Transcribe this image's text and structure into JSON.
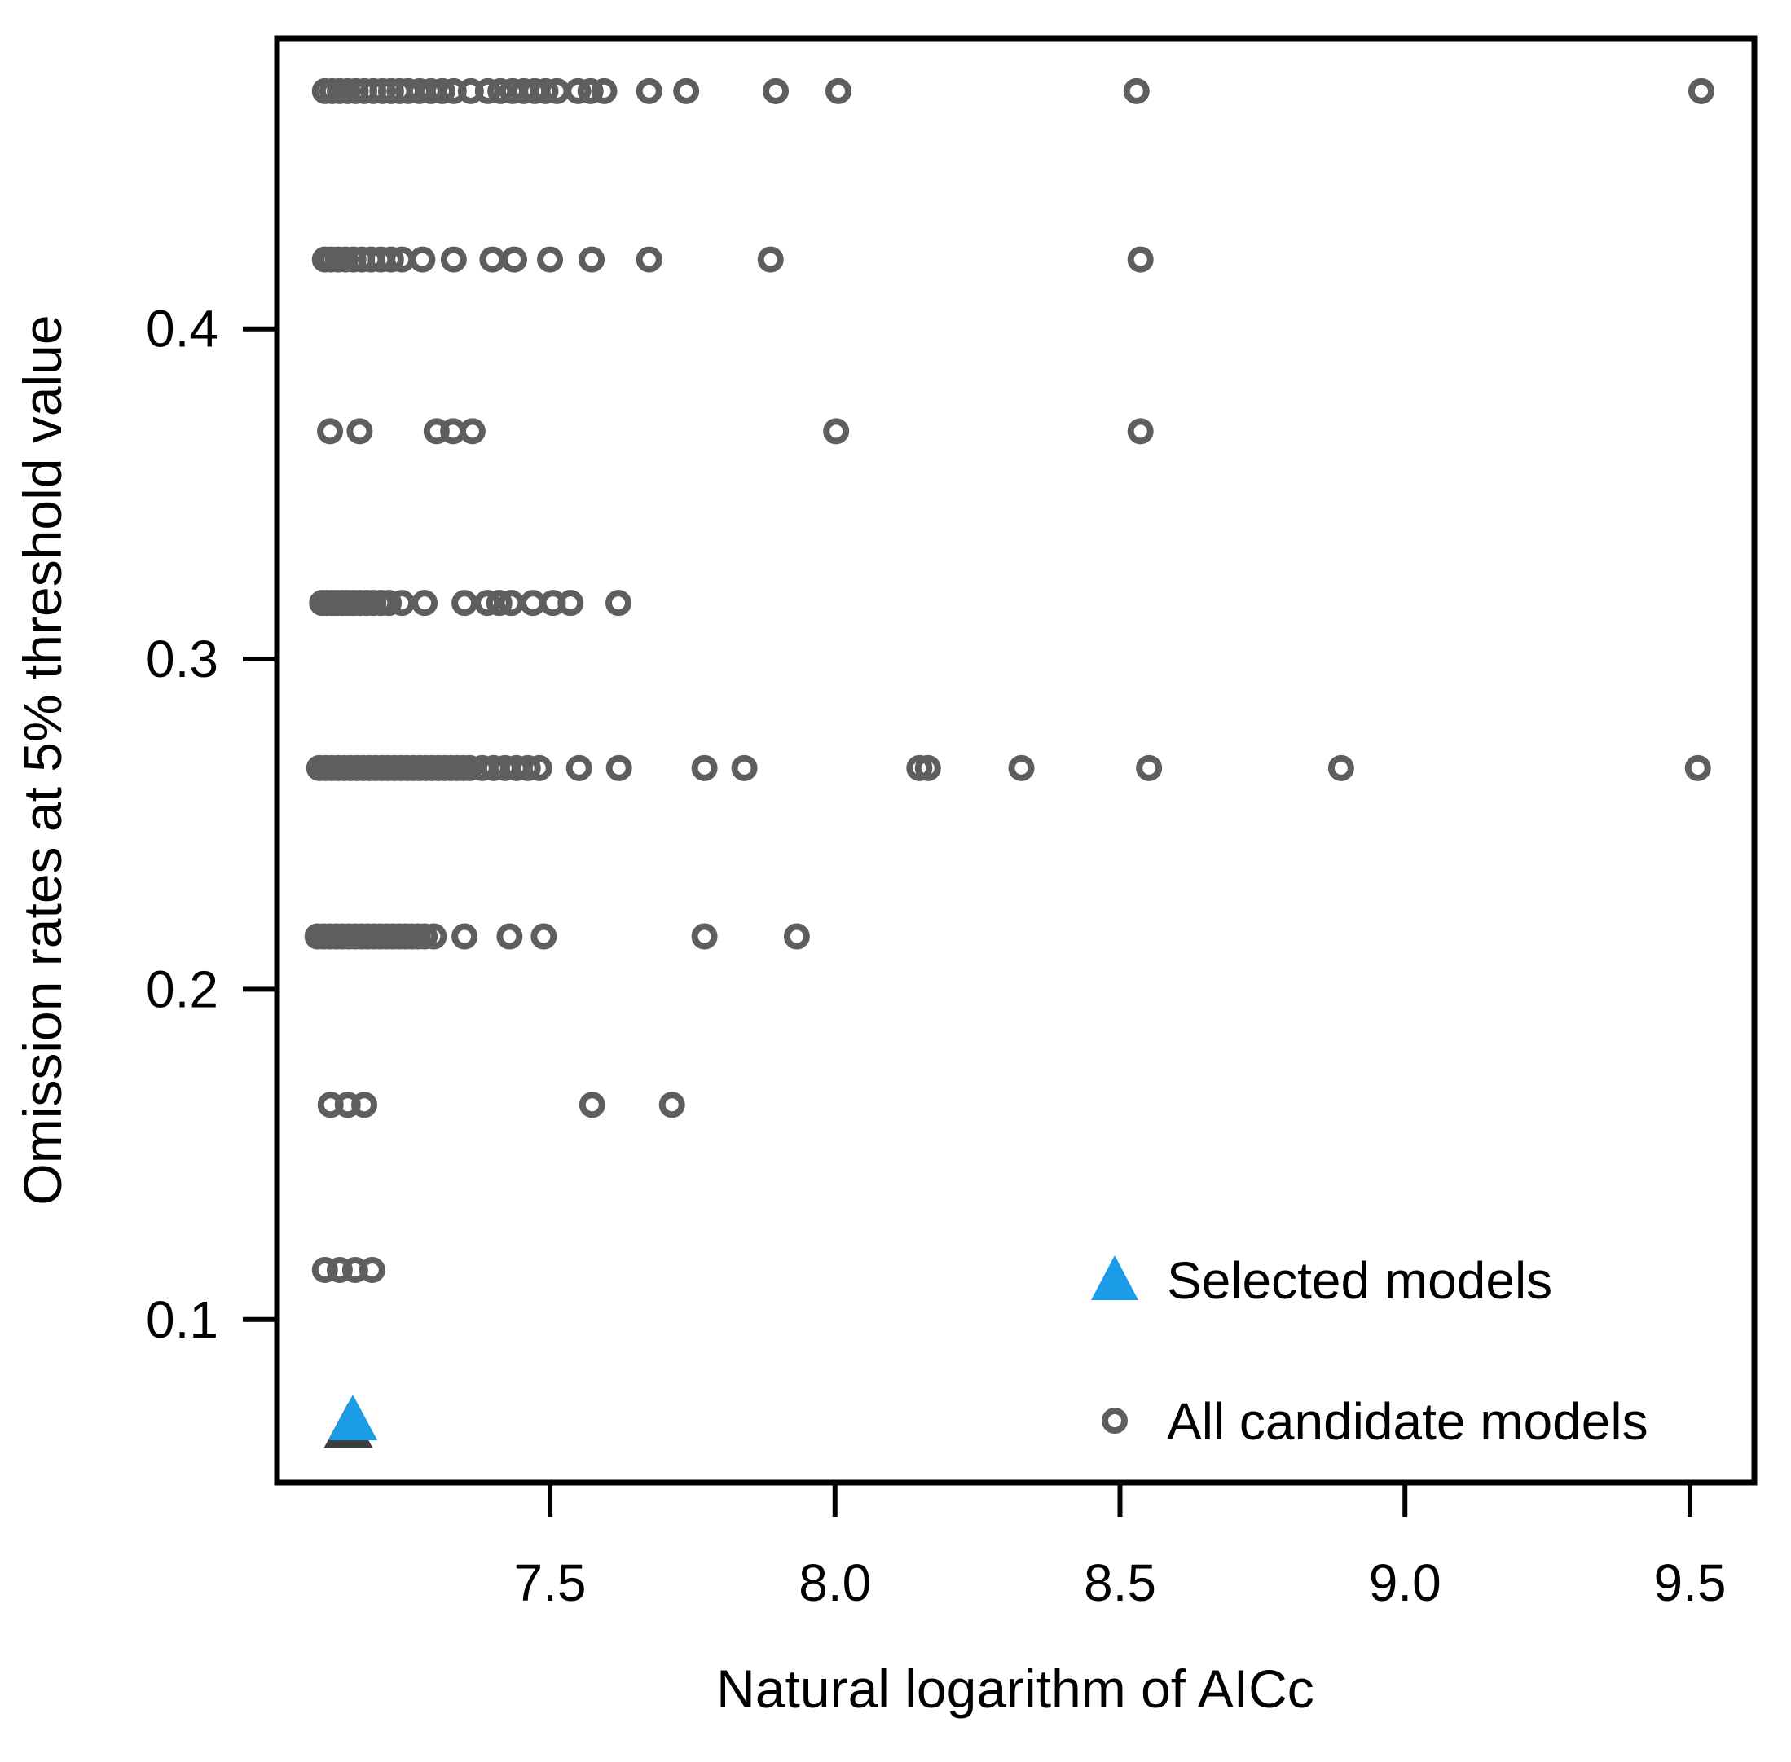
{
  "chart_data": {
    "type": "scatter",
    "title": "",
    "xlabel": "Natural logarithm of AICc",
    "ylabel": "Omission rates at 5% threshold value",
    "xlim": [
      7.021,
      9.613
    ],
    "ylim": [
      0.0506,
      0.488
    ],
    "grid": false,
    "x_ticks": [
      7.5,
      8.0,
      8.5,
      9.0,
      9.5
    ],
    "x_tick_labels": [
      "7.5",
      "8.0",
      "8.5",
      "9.0",
      "9.5"
    ],
    "y_ticks": [
      0.1,
      0.2,
      0.3,
      0.4
    ],
    "y_tick_labels": [
      "0.1",
      "0.2",
      "0.3",
      "0.4"
    ],
    "legend": {
      "position": "inside-bottom-right",
      "entries": [
        {
          "label": "Selected models",
          "marker": "triangle",
          "color": "#1c9be6"
        },
        {
          "label": "All candidate models",
          "marker": "circle",
          "color": "#5e5e5e"
        }
      ]
    },
    "series": [
      {
        "name": "All candidate models",
        "marker": "circle",
        "color": "#5e5e5e",
        "rows": [
          {
            "y": 0.472,
            "x": [
              7.105,
              7.118,
              7.131,
              7.145,
              7.159,
              7.174,
              7.19,
              7.206,
              7.221,
              7.236,
              7.251,
              7.271,
              7.291,
              7.311,
              7.331,
              7.361,
              7.391,
              7.413,
              7.434,
              7.454,
              7.473,
              7.492,
              7.512,
              7.549,
              7.571,
              7.595,
              7.674,
              7.739,
              7.896,
              8.006,
              8.529,
              9.52
            ]
          },
          {
            "y": 0.421,
            "x": [
              7.105,
              7.116,
              7.128,
              7.141,
              7.155,
              7.17,
              7.186,
              7.203,
              7.221,
              7.24,
              7.276,
              7.331,
              7.399,
              7.437,
              7.5,
              7.573,
              7.674,
              7.887,
              8.536
            ]
          },
          {
            "y": 0.369,
            "x": [
              7.114,
              7.166,
              7.301,
              7.33,
              7.364,
              8.002,
              8.536
            ]
          },
          {
            "y": 0.317,
            "x": [
              7.1,
              7.108,
              7.117,
              7.126,
              7.135,
              7.145,
              7.155,
              7.166,
              7.178,
              7.19,
              7.203,
              7.217,
              7.24,
              7.28,
              7.35,
              7.39,
              7.411,
              7.432,
              7.47,
              7.505,
              7.536,
              7.62
            ]
          },
          {
            "y": 0.267,
            "x": [
              7.095,
              7.106,
              7.117,
              7.128,
              7.139,
              7.15,
              7.161,
              7.172,
              7.183,
              7.194,
              7.205,
              7.216,
              7.227,
              7.238,
              7.249,
              7.26,
              7.271,
              7.282,
              7.293,
              7.304,
              7.315,
              7.326,
              7.337,
              7.348,
              7.359,
              7.381,
              7.401,
              7.421,
              7.441,
              7.461,
              7.481,
              7.551,
              7.621,
              7.771,
              7.841,
              8.148,
              8.163,
              8.327,
              8.551,
              8.888,
              9.514
            ]
          },
          {
            "y": 0.216,
            "x": [
              7.092,
              7.103,
              7.114,
              7.125,
              7.136,
              7.147,
              7.158,
              7.169,
              7.18,
              7.191,
              7.202,
              7.213,
              7.224,
              7.235,
              7.246,
              7.257,
              7.268,
              7.28,
              7.296,
              7.35,
              7.429,
              7.489,
              7.771,
              7.933
            ]
          },
          {
            "y": 0.165,
            "x": [
              7.115,
              7.145,
              7.174,
              7.574,
              7.714
            ]
          },
          {
            "y": 0.115,
            "x": [
              7.105,
              7.131,
              7.158,
              7.188
            ]
          }
        ]
      },
      {
        "name": "Selected models",
        "marker": "triangle",
        "color": "#1c9be6",
        "points": [
          [
            7.146,
            0.0669
          ],
          [
            7.154,
            0.0693
          ]
        ],
        "fills": [
          "#3d3d3d",
          "#1c9be6"
        ]
      }
    ]
  },
  "styles": {
    "background": "#ffffff",
    "box_color": "#000000",
    "circle_color": "#5e5e5e",
    "triangle_color": "#1c9be6",
    "triangle_shadow_color": "#3d3d3d",
    "text_color": "#000000"
  }
}
